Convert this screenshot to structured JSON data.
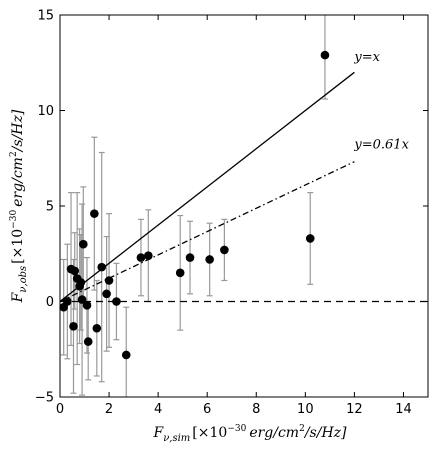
{
  "chart_data": {
    "type": "scatter",
    "xlabel": "F_{ν,sim} [×10^-30 erg/cm^2/s/Hz]",
    "ylabel": "F_{ν,obs} [×10^-30 erg/cm^2/s/Hz]",
    "xlim": [
      0,
      15
    ],
    "ylim": [
      -5,
      15
    ],
    "xticks": [
      0,
      2,
      4,
      6,
      8,
      10,
      12,
      14
    ],
    "yticks": [
      -5,
      0,
      5,
      10,
      15
    ],
    "xlabel_parts": {
      "main": "F",
      "sub": "ν,sim",
      "bracket": "[×10",
      "exp": "−30",
      "units": "erg/cm",
      "sq": "2",
      "tail": "/s/Hz]"
    },
    "ylabel_parts": {
      "main": "F",
      "sub": "ν,obs",
      "bracket": "[×10",
      "exp": "−30",
      "units": "erg/cm",
      "sq": "2",
      "tail": "/s/Hz]"
    },
    "lines": [
      {
        "style": "solid",
        "slope": 1.0,
        "x_range": [
          0,
          12
        ],
        "label": "y=x",
        "label_at": [
          12.0,
          12.6
        ]
      },
      {
        "style": "dashdot",
        "slope": 0.61,
        "x_range": [
          0,
          12
        ],
        "label": "y=0.61x",
        "label_at": [
          12.0,
          8.0
        ]
      },
      {
        "style": "dashed",
        "slope": 0.0,
        "x_range": [
          0,
          15
        ],
        "label": ""
      }
    ],
    "series": [
      {
        "marker": "black-circle",
        "points": [
          {
            "x": 0.15,
            "y": -0.3,
            "err": 2.5
          },
          {
            "x": 0.3,
            "y": 0.0,
            "err": 3.0
          },
          {
            "x": 0.45,
            "y": 1.7,
            "err": 4.0
          },
          {
            "x": 0.55,
            "y": -1.3,
            "err": 3.5
          },
          {
            "x": 0.6,
            "y": 1.6,
            "err": 2.0
          },
          {
            "x": 0.7,
            "y": 1.2,
            "err": 4.5
          },
          {
            "x": 0.8,
            "y": 0.8,
            "err": 3.0
          },
          {
            "x": 0.85,
            "y": 1.0,
            "err": 2.5
          },
          {
            "x": 0.9,
            "y": 0.1,
            "err": 5.0
          },
          {
            "x": 0.95,
            "y": 3.0,
            "err": 3.0
          },
          {
            "x": 1.1,
            "y": -0.2,
            "err": 2.5
          },
          {
            "x": 1.15,
            "y": -2.1,
            "err": 2.0
          },
          {
            "x": 1.4,
            "y": 4.6,
            "err": 4.0
          },
          {
            "x": 1.5,
            "y": -1.4,
            "err": 2.5
          },
          {
            "x": 1.7,
            "y": 1.8,
            "err": 6.0
          },
          {
            "x": 1.9,
            "y": 0.4,
            "err": 3.0
          },
          {
            "x": 2.0,
            "y": 1.1,
            "err": 3.5
          },
          {
            "x": 2.3,
            "y": 0.0,
            "err": 2.0
          },
          {
            "x": 2.7,
            "y": -2.8,
            "err": 2.5
          },
          {
            "x": 3.3,
            "y": 2.3,
            "err": 2.0
          },
          {
            "x": 3.6,
            "y": 2.4,
            "err": 2.4
          },
          {
            "x": 4.9,
            "y": 1.5,
            "err": 3.0
          },
          {
            "x": 5.3,
            "y": 2.3,
            "err": 1.9
          },
          {
            "x": 6.1,
            "y": 2.2,
            "err": 1.9
          },
          {
            "x": 6.7,
            "y": 2.7,
            "err": 1.6
          },
          {
            "x": 10.2,
            "y": 3.3,
            "err": 2.4
          },
          {
            "x": 10.8,
            "y": 12.9,
            "err": 2.3
          }
        ]
      }
    ]
  }
}
